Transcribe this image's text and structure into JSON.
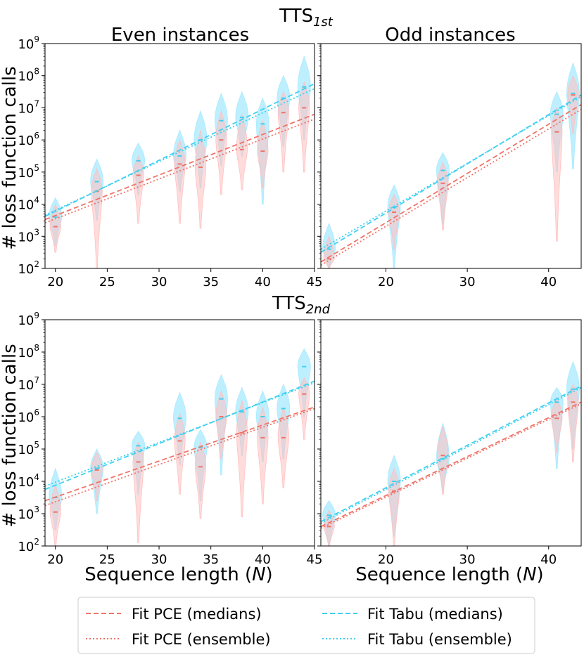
{
  "chart_data": {
    "type": "violin-scatter-fit",
    "yscale": "log",
    "ylabel": "# loss function calls",
    "xlabel": "Sequence length (N)",
    "xlabel_main": "Sequence length (",
    "xlabel_var": "N",
    "xlabel_close": ")",
    "row_titles": [
      {
        "base": "TTS",
        "sub": "1st"
      },
      {
        "base": "TTS",
        "sub": "2nd"
      }
    ],
    "column_titles": [
      "Even instances",
      "Odd instances"
    ],
    "y_ticks": [
      {
        "exp": 2,
        "base": "10",
        "sup": "2"
      },
      {
        "exp": 3,
        "base": "10",
        "sup": "3"
      },
      {
        "exp": 4,
        "base": "10",
        "sup": "4"
      },
      {
        "exp": 5,
        "base": "10",
        "sup": "5"
      },
      {
        "exp": 6,
        "base": "10",
        "sup": "6"
      },
      {
        "exp": 7,
        "base": "10",
        "sup": "7"
      },
      {
        "exp": 8,
        "base": "10",
        "sup": "8"
      },
      {
        "exp": 9,
        "base": "10",
        "sup": "9"
      }
    ],
    "colors": {
      "pce": "#f07367",
      "pce_fill": "#ffc0c0",
      "tabu": "#3fd0f0",
      "tabu_fill": "#a8eaff"
    },
    "legend": [
      {
        "label": "Fit PCE (medians)",
        "series": "pce",
        "style": "dashed"
      },
      {
        "label": "Fit Tabu (medians)",
        "series": "tabu",
        "style": "dashed"
      },
      {
        "label": "Fit PCE (ensemble)",
        "series": "pce",
        "style": "dotted"
      },
      {
        "label": "Fit Tabu (ensemble)",
        "series": "tabu",
        "style": "dotted"
      }
    ],
    "panels": [
      {
        "row": 0,
        "col": 0,
        "xlim": [
          19,
          45
        ],
        "ylim_log10": [
          2,
          9
        ],
        "xticks": [
          20,
          25,
          30,
          35,
          40,
          45
        ],
        "violins": [
          {
            "n": 20,
            "tabu": {
              "median": 3.6,
              "min": 2.7,
              "max": 4.2
            },
            "pce": {
              "median": 3.3,
              "min": 2.5,
              "max": 4.0
            }
          },
          {
            "n": 24,
            "tabu": {
              "median": 4.7,
              "min": 3.5,
              "max": 5.4
            },
            "pce": {
              "median": 4.4,
              "min": 2.0,
              "max": 5.1
            }
          },
          {
            "n": 28,
            "tabu": {
              "median": 5.35,
              "min": 4.3,
              "max": 5.9
            },
            "pce": {
              "median": 4.9,
              "min": 3.4,
              "max": 5.5
            }
          },
          {
            "n": 32,
            "tabu": {
              "median": 5.5,
              "min": 4.4,
              "max": 6.3
            },
            "pce": {
              "median": 5.25,
              "min": 3.4,
              "max": 6.0
            }
          },
          {
            "n": 34,
            "tabu": {
              "median": 6.0,
              "min": 4.5,
              "max": 6.9
            },
            "pce": {
              "median": 5.15,
              "min": 3.25,
              "max": 6.3
            }
          },
          {
            "n": 36,
            "tabu": {
              "median": 6.6,
              "min": 5.2,
              "max": 7.45
            },
            "pce": {
              "median": 6.0,
              "min": 4.3,
              "max": 6.9
            }
          },
          {
            "n": 38,
            "tabu": {
              "median": 6.7,
              "min": 5.5,
              "max": 7.5
            },
            "pce": {
              "median": 5.7,
              "min": 4.45,
              "max": 6.8
            }
          },
          {
            "n": 40,
            "tabu": {
              "median": 6.5,
              "min": 4.0,
              "max": 7.3
            },
            "pce": {
              "median": 5.65,
              "min": 4.5,
              "max": 6.6
            }
          },
          {
            "n": 42,
            "tabu": {
              "median": 7.3,
              "min": 5.8,
              "max": 8.0
            },
            "pce": {
              "median": 6.85,
              "min": 5.0,
              "max": 7.5
            }
          },
          {
            "n": 44,
            "tabu": {
              "median": 7.65,
              "min": 6.0,
              "max": 8.6
            },
            "pce": {
              "median": 7.0,
              "min": 5.0,
              "max": 7.8
            }
          }
        ],
        "fits": {
          "pce_medians": [
            [
              19,
              3.52
            ],
            [
              45,
              6.8
            ]
          ],
          "pce_ensemble": [
            [
              19,
              3.42
            ],
            [
              45,
              6.65
            ]
          ],
          "tabu_medians": [
            [
              19,
              3.62
            ],
            [
              45,
              7.75
            ]
          ],
          "tabu_ensemble": [
            [
              19,
              3.66
            ],
            [
              45,
              7.6
            ]
          ]
        }
      },
      {
        "row": 0,
        "col": 1,
        "xlim": [
          12,
          44
        ],
        "ylim_log10": [
          2,
          9
        ],
        "xticks": [
          20,
          30,
          40
        ],
        "violins": [
          {
            "n": 13,
            "tabu": {
              "median": 2.6,
              "min": 2.0,
              "max": 3.4
            },
            "pce": {
              "median": 2.3,
              "min": 2.0,
              "max": 3.0
            }
          },
          {
            "n": 21,
            "tabu": {
              "median": 3.9,
              "min": 2.0,
              "max": 4.6
            },
            "pce": {
              "median": 3.75,
              "min": 2.6,
              "max": 4.3
            }
          },
          {
            "n": 27,
            "tabu": {
              "median": 5.05,
              "min": 3.4,
              "max": 5.6
            },
            "pce": {
              "median": 4.65,
              "min": 3.2,
              "max": 5.3
            }
          },
          {
            "n": 41,
            "tabu": {
              "median": 6.8,
              "min": 5.0,
              "max": 7.5
            },
            "pce": {
              "median": 6.25,
              "min": 2.85,
              "max": 7.0
            }
          },
          {
            "n": 43,
            "tabu": {
              "median": 7.45,
              "min": 5.1,
              "max": 8.4
            },
            "pce": {
              "median": 7.4,
              "min": 6.2,
              "max": 8.0
            }
          }
        ],
        "fits": {
          "pce_medians": [
            [
              12,
              2.2
            ],
            [
              44,
              7.1
            ]
          ],
          "pce_ensemble": [
            [
              12,
              2.1
            ],
            [
              44,
              6.95
            ]
          ],
          "tabu_medians": [
            [
              12,
              2.5
            ],
            [
              44,
              7.4
            ]
          ],
          "tabu_ensemble": [
            [
              12,
              2.6
            ],
            [
              44,
              7.35
            ]
          ]
        }
      },
      {
        "row": 1,
        "col": 0,
        "xlim": [
          19,
          45
        ],
        "ylim_log10": [
          2,
          9
        ],
        "xticks": [
          20,
          25,
          30,
          35,
          40,
          45
        ],
        "violins": [
          {
            "n": 20,
            "tabu": {
              "median": 3.5,
              "min": 2.5,
              "max": 4.4
            },
            "pce": {
              "median": 3.05,
              "min": 2.0,
              "max": 3.9
            }
          },
          {
            "n": 24,
            "tabu": {
              "median": 4.4,
              "min": 3.0,
              "max": 5.0
            },
            "pce": {
              "median": 4.35,
              "min": 3.4,
              "max": 4.9
            }
          },
          {
            "n": 28,
            "tabu": {
              "median": 5.1,
              "min": 3.6,
              "max": 5.55
            },
            "pce": {
              "median": 4.6,
              "min": 2.1,
              "max": 5.2
            }
          },
          {
            "n": 32,
            "tabu": {
              "median": 5.95,
              "min": 4.5,
              "max": 6.75
            },
            "pce": {
              "median": 5.25,
              "min": 3.6,
              "max": 6.1
            }
          },
          {
            "n": 34,
            "tabu": {
              "median": 5.05,
              "min": 3.4,
              "max": 5.6
            },
            "pce": {
              "median": 4.45,
              "min": 2.85,
              "max": 5.2
            }
          },
          {
            "n": 36,
            "tabu": {
              "median": 6.55,
              "min": 4.2,
              "max": 7.3
            },
            "pce": {
              "median": 6.0,
              "min": 4.7,
              "max": 6.8
            }
          },
          {
            "n": 38,
            "tabu": {
              "median": 6.15,
              "min": 4.8,
              "max": 6.9
            },
            "pce": {
              "median": 5.5,
              "min": 2.9,
              "max": 6.5
            }
          },
          {
            "n": 40,
            "tabu": {
              "median": 6.0,
              "min": 4.6,
              "max": 6.8
            },
            "pce": {
              "median": 5.35,
              "min": 3.3,
              "max": 6.3
            }
          },
          {
            "n": 42,
            "tabu": {
              "median": 6.25,
              "min": 4.7,
              "max": 7.0
            },
            "pce": {
              "median": 5.35,
              "min": 3.8,
              "max": 6.3
            }
          },
          {
            "n": 44,
            "tabu": {
              "median": 7.55,
              "min": 6.0,
              "max": 8.1
            },
            "pce": {
              "median": 6.7,
              "min": 5.3,
              "max": 7.2
            }
          }
        ],
        "fits": {
          "pce_medians": [
            [
              19,
              3.4
            ],
            [
              45,
              6.3
            ]
          ],
          "pce_ensemble": [
            [
              19,
              3.25
            ],
            [
              45,
              6.25
            ]
          ],
          "tabu_medians": [
            [
              19,
              3.75
            ],
            [
              45,
              7.1
            ]
          ],
          "tabu_ensemble": [
            [
              19,
              3.85
            ],
            [
              45,
              7.05
            ]
          ]
        }
      },
      {
        "row": 1,
        "col": 1,
        "xlim": [
          12,
          44
        ],
        "ylim_log10": [
          2,
          9
        ],
        "xticks": [
          20,
          30,
          40
        ],
        "violins": [
          {
            "n": 13,
            "tabu": {
              "median": 2.95,
              "min": 2.0,
              "max": 3.4
            },
            "pce": {
              "median": 2.6,
              "min": 2.0,
              "max": 3.1
            }
          },
          {
            "n": 21,
            "tabu": {
              "median": 4.0,
              "min": 2.3,
              "max": 4.8
            },
            "pce": {
              "median": 3.7,
              "min": 2.0,
              "max": 4.4
            }
          },
          {
            "n": 27,
            "tabu": {
              "median": 4.7,
              "min": 3.7,
              "max": 5.8
            },
            "pce": {
              "median": 4.8,
              "min": 3.6,
              "max": 5.7
            }
          },
          {
            "n": 41,
            "tabu": {
              "median": 6.45,
              "min": 4.4,
              "max": 6.9
            },
            "pce": {
              "median": 5.95,
              "min": 4.9,
              "max": 6.6
            }
          },
          {
            "n": 43,
            "tabu": {
              "median": 6.85,
              "min": 5.0,
              "max": 7.7
            },
            "pce": {
              "median": 6.45,
              "min": 4.6,
              "max": 7.0
            }
          }
        ],
        "fits": {
          "pce_medians": [
            [
              12,
              2.6
            ],
            [
              44,
              6.45
            ]
          ],
          "pce_ensemble": [
            [
              12,
              2.55
            ],
            [
              44,
              6.4
            ]
          ],
          "tabu_medians": [
            [
              12,
              2.75
            ],
            [
              44,
              6.95
            ]
          ],
          "tabu_ensemble": [
            [
              12,
              2.7
            ],
            [
              44,
              6.9
            ]
          ]
        }
      }
    ]
  }
}
